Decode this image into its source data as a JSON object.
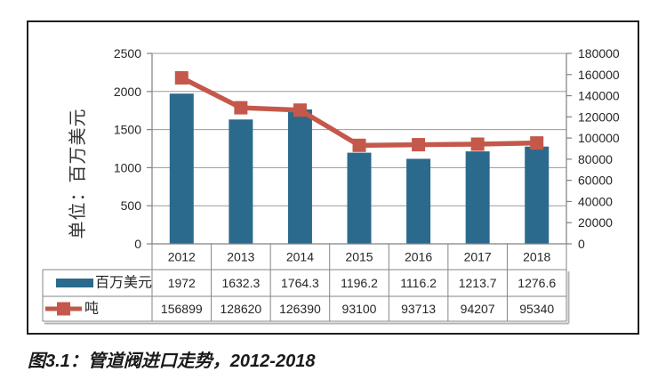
{
  "figure": {
    "axis_title": "单位：百万美元",
    "caption": "图3.1：管道阀进口走势，2012-2018"
  },
  "chart_data": {
    "type": "combo-bar-line-with-data-table",
    "categories": [
      "2012",
      "2013",
      "2014",
      "2015",
      "2016",
      "2017",
      "2018"
    ],
    "series": [
      {
        "name": "百万美元",
        "type": "bar",
        "axis": "left",
        "color": "#2B6A8C",
        "values": [
          1972,
          1632.3,
          1764.3,
          1196.2,
          1116.2,
          1213.7,
          1276.6
        ],
        "display": [
          "1972",
          "1632.3",
          "1764.3",
          "1196.2",
          "1116.2",
          "1213.7",
          "1276.6"
        ]
      },
      {
        "name": "吨",
        "type": "line",
        "axis": "right",
        "color": "#C4584A",
        "values": [
          156899,
          128620,
          126390,
          93100,
          93713,
          94207,
          95340
        ],
        "display": [
          "156899",
          "128620",
          "126390",
          "93100",
          "93713",
          "94207",
          "95340"
        ]
      }
    ],
    "left_axis": {
      "min": 0,
      "max": 2500,
      "step": 500,
      "ticks": [
        "0",
        "500",
        "1000",
        "1500",
        "2000",
        "2500"
      ],
      "title": "单位：百万美元"
    },
    "right_axis": {
      "min": 0,
      "max": 180000,
      "step": 20000,
      "ticks": [
        "0",
        "20000",
        "40000",
        "60000",
        "80000",
        "100000",
        "120000",
        "140000",
        "160000",
        "180000"
      ]
    },
    "grid": true,
    "data_table": true,
    "legend_position": "data-table-left"
  },
  "colors": {
    "bar": "#2B6A8C",
    "line": "#C4584A",
    "grid": "#9a9a9a",
    "axis": "#808080",
    "table_border": "#858585",
    "shadow": "#b5b5b5",
    "text": "#262626",
    "box_border": "#1f1f1f"
  }
}
